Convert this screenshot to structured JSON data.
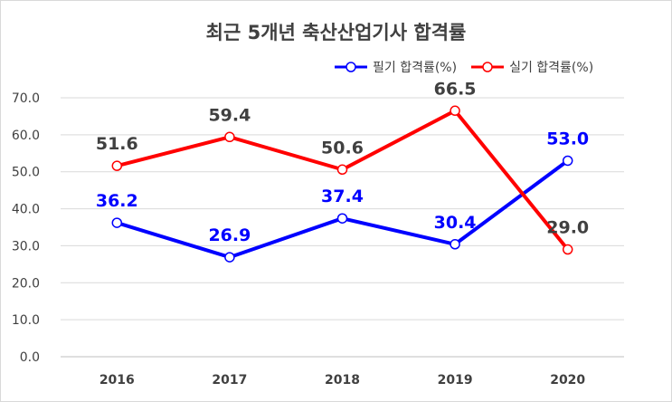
{
  "chart_data": {
    "type": "line",
    "title": "최근 5개년 축산산업기사 합격률",
    "categories": [
      "2016",
      "2017",
      "2018",
      "2019",
      "2020"
    ],
    "series": [
      {
        "name": "필기 합격률(%)",
        "color": "#0000ff",
        "values": [
          36.2,
          26.9,
          37.4,
          30.4,
          53.0
        ],
        "labels": [
          "36.2",
          "26.9",
          "37.4",
          "30.4",
          "53.0"
        ]
      },
      {
        "name": "실기 합격률(%)",
        "color": "#ff0000",
        "values": [
          51.6,
          59.4,
          50.6,
          66.5,
          29.0
        ],
        "labels": [
          "51.6",
          "59.4",
          "50.6",
          "66.5",
          "29.0"
        ]
      }
    ],
    "yticks": [
      "0.0",
      "10.0",
      "20.0",
      "30.0",
      "40.0",
      "50.0",
      "60.0",
      "70.0"
    ],
    "ylim": [
      0,
      70
    ],
    "grid": true,
    "legend_position": "top-right"
  }
}
